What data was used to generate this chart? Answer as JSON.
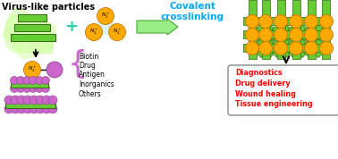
{
  "title": "Virus-like particles",
  "covalent_text": "Covalent\ncrosslinking",
  "list_items": [
    "Biotin",
    "Drug",
    "Antigen",
    "Inorganics",
    "Others"
  ],
  "applications": [
    "Diagnostics",
    "Drug delivery",
    "Wound healing",
    "Tissue engineering"
  ],
  "colors": {
    "green_bar": "#66CC33",
    "green_dark": "#336611",
    "orange": "#FFAA00",
    "orange_dark": "#CC7700",
    "purple": "#CC66CC",
    "purple_dark": "#884488",
    "cyan_plus": "#33CCAA",
    "green_arrow": "#99EE88",
    "green_arrow_dark": "#44AA33",
    "text_blue": "#00AAFF",
    "text_red": "#FF0000",
    "text_black": "#000000",
    "white": "#FFFFFF",
    "light_blue": "#CCEEEE",
    "leaf_color": "#CCFF99",
    "box_border": "#888888"
  }
}
